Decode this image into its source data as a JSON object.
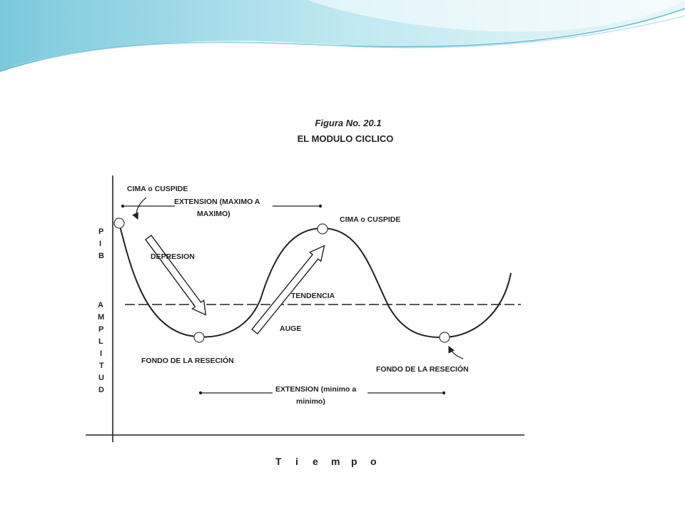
{
  "figure": {
    "number": "Figura No. 20.1",
    "title": "EL MODULO CICLICO"
  },
  "labels": {
    "peak_left": "CIMA o CUSPIDE",
    "peak_right": "CIMA o CUSPIDE",
    "extension_max_line1": "EXTENSION (MAXIMO A",
    "extension_max_line2": "MAXIMO)",
    "depression": "DEPRESION",
    "trend": "TENDENCIA",
    "boom": "AUGE",
    "trough_left": "FONDO DE LA RESECIÓN",
    "trough_right": "FONDO DE LA RESECIÓN",
    "extension_min_line1": "EXTENSION (minimo a",
    "extension_min_line2": "minimo)"
  },
  "axes": {
    "y_label_top": [
      "P",
      "I",
      "B"
    ],
    "y_label_bottom": [
      "A",
      "M",
      "P",
      "L",
      "I",
      "T",
      "U",
      "D"
    ],
    "x_label": [
      "T",
      "i",
      "e",
      "m",
      "p",
      "o"
    ]
  },
  "colors": {
    "wave_light": "#b8e6ef",
    "wave_mid": "#8fd3e2",
    "wave_dark": "#5fb8cf",
    "ink": "#222222"
  }
}
